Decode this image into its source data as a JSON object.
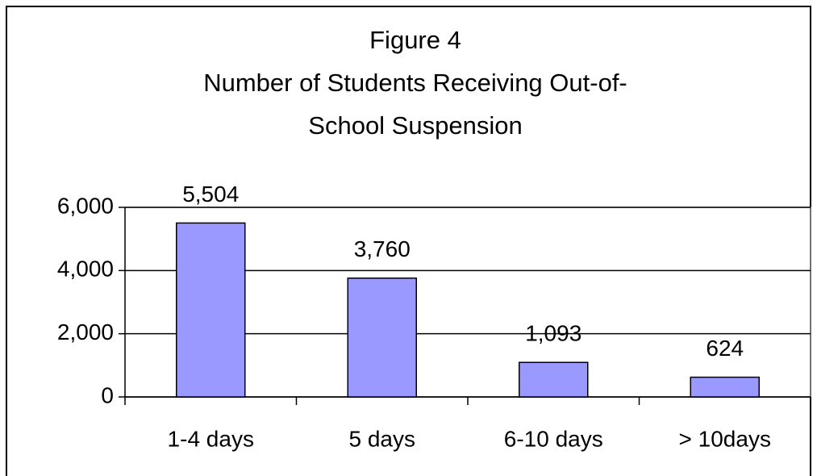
{
  "chart_data": {
    "type": "bar",
    "title": [
      "Figure 4",
      "Number of Students Receiving Out-of-",
      "School Suspension"
    ],
    "categories": [
      "1-4 days",
      "5 days",
      "6-10 days",
      "> 10days"
    ],
    "values": [
      5504,
      3760,
      1093,
      624
    ],
    "value_labels": [
      "5,504",
      "3,760",
      "1,093",
      "624"
    ],
    "color": "#9999ff",
    "ylim": [
      0,
      6000
    ],
    "yticks": [
      0,
      {
        "value": 2000,
        "label": "2,000"
      },
      {
        "value": 4000,
        "label": "4,000"
      },
      {
        "value": 6000,
        "label": "6,000"
      }
    ],
    "grid": true
  }
}
